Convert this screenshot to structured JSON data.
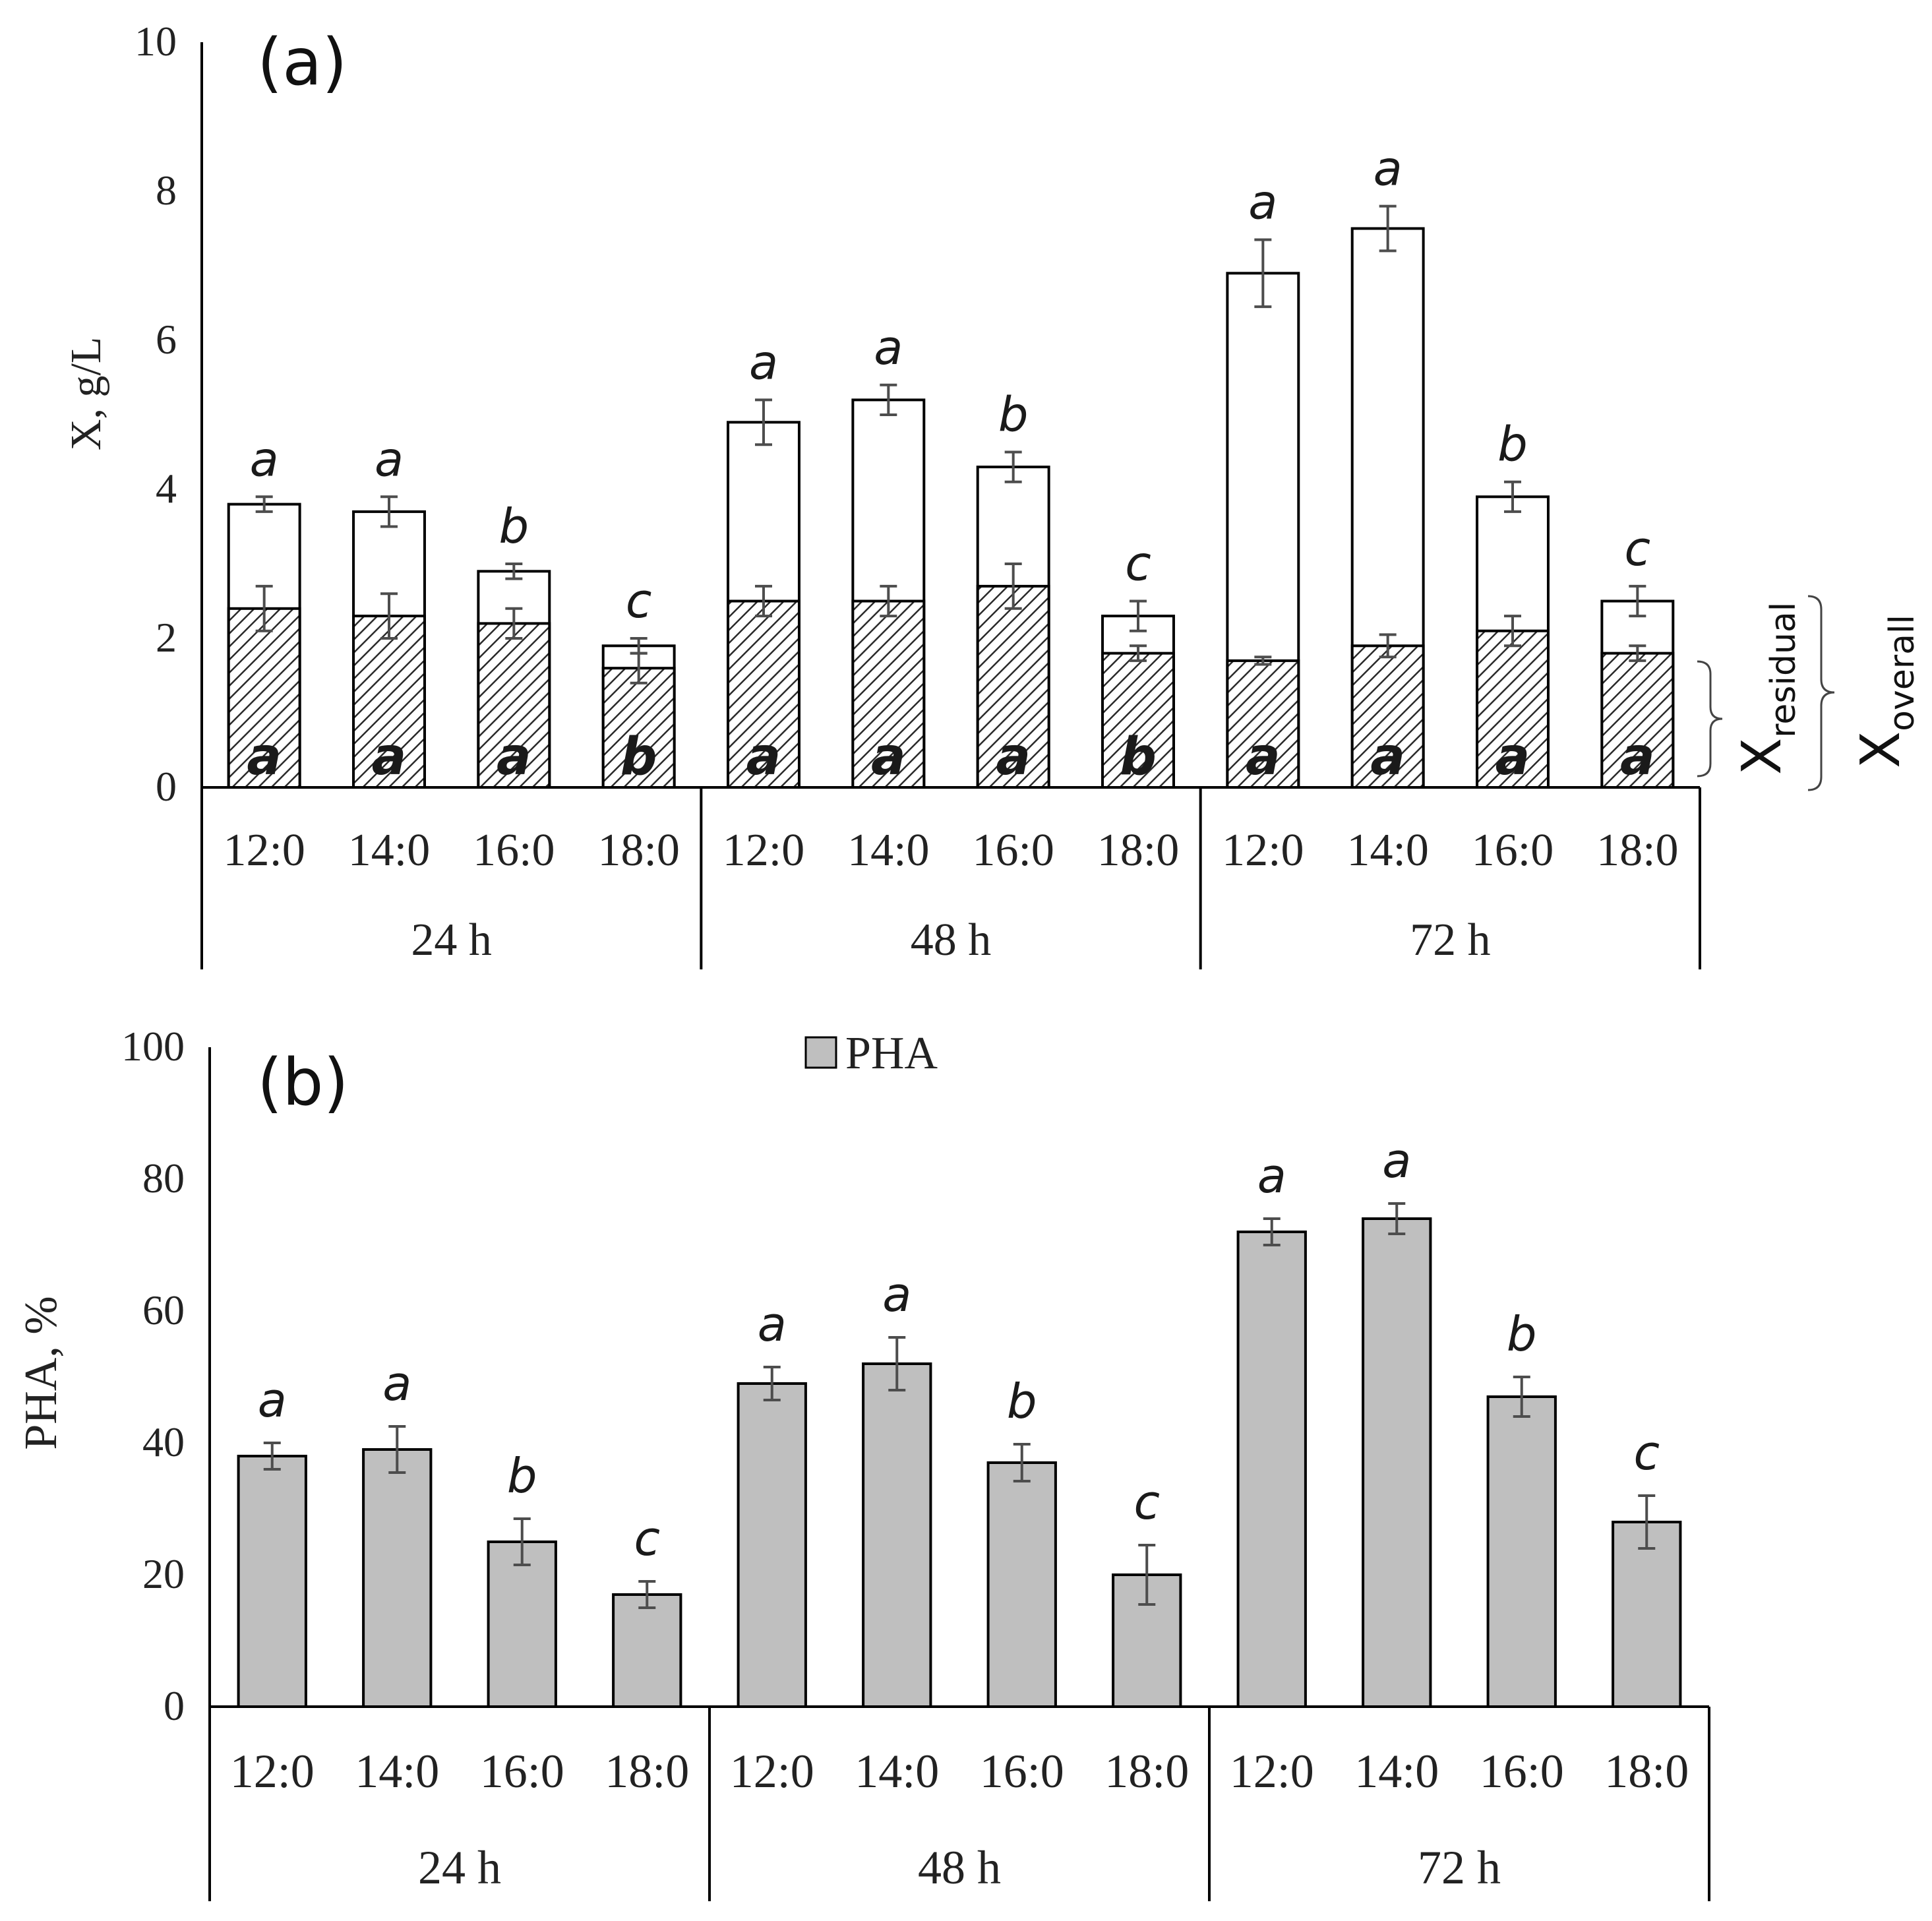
{
  "colors": {
    "axis": "#000000",
    "bar_outline": "#000000",
    "pha_fill": "#bfbfbf",
    "overall_fill": "#ffffff",
    "residual_hatch": "#2a2a2a",
    "error_bar": "#4d4d4d"
  },
  "chart_data": [
    {
      "type": "bar",
      "stacked": true,
      "panel_label": "(a)",
      "ylabel": "X, g/L",
      "ylim": [
        0,
        10
      ],
      "yticks": [
        "0",
        "2",
        "4",
        "6",
        "8",
        "10"
      ],
      "groups": [
        "24 h",
        "48 h",
        "72 h"
      ],
      "categories": [
        "12:0",
        "14:0",
        "16:0",
        "18:0",
        "12:0",
        "14:0",
        "16:0",
        "18:0",
        "12:0",
        "14:0",
        "16:0",
        "18:0"
      ],
      "series": [
        {
          "name": "X residual",
          "pattern": "hatched",
          "values": [
            2.4,
            2.3,
            2.2,
            1.6,
            2.5,
            2.5,
            2.7,
            1.8,
            1.7,
            1.9,
            2.1,
            1.8
          ],
          "errors": [
            0.3,
            0.3,
            0.2,
            0.2,
            0.2,
            0.2,
            0.3,
            0.1,
            0.05,
            0.15,
            0.2,
            0.1
          ],
          "letters": [
            "a",
            "a",
            "a",
            "b",
            "a",
            "a",
            "a",
            "b",
            "a",
            "a",
            "a",
            "a"
          ]
        },
        {
          "name": "X overall",
          "pattern": "white",
          "values": [
            3.8,
            3.7,
            2.9,
            1.9,
            4.9,
            5.2,
            4.3,
            2.3,
            6.9,
            7.5,
            3.9,
            2.5
          ],
          "errors": [
            0.1,
            0.2,
            0.1,
            0.1,
            0.3,
            0.2,
            0.2,
            0.2,
            0.45,
            0.3,
            0.2,
            0.2
          ],
          "letters": [
            "a",
            "a",
            "b",
            "c",
            "a",
            "a",
            "b",
            "c",
            "a",
            "a",
            "b",
            "c"
          ]
        }
      ],
      "annotations": {
        "residual_main": "X",
        "residual_sub": "residual",
        "overall_main": "X",
        "overall_sub": "overall"
      }
    },
    {
      "type": "bar",
      "panel_label": "(b)",
      "ylabel": "PHA, %",
      "ylim": [
        0,
        100
      ],
      "yticks": [
        "0",
        "20",
        "40",
        "60",
        "80",
        "100"
      ],
      "legend": [
        "PHA"
      ],
      "legend_position": "top-center",
      "groups": [
        "24 h",
        "48 h",
        "72 h"
      ],
      "categories": [
        "12:0",
        "14:0",
        "16:0",
        "18:0",
        "12:0",
        "14:0",
        "16:0",
        "18:0",
        "12:0",
        "14:0",
        "16:0",
        "18:0"
      ],
      "series": [
        {
          "name": "PHA",
          "values": [
            38,
            39,
            25,
            17,
            49,
            52,
            37,
            20,
            72,
            74,
            47,
            28
          ],
          "errors": [
            2,
            3.5,
            3.5,
            2,
            2.5,
            4,
            2.8,
            4.5,
            2,
            2.3,
            3,
            4
          ],
          "letters": [
            "a",
            "a",
            "b",
            "c",
            "a",
            "a",
            "b",
            "c",
            "a",
            "a",
            "b",
            "c"
          ]
        }
      ]
    }
  ]
}
